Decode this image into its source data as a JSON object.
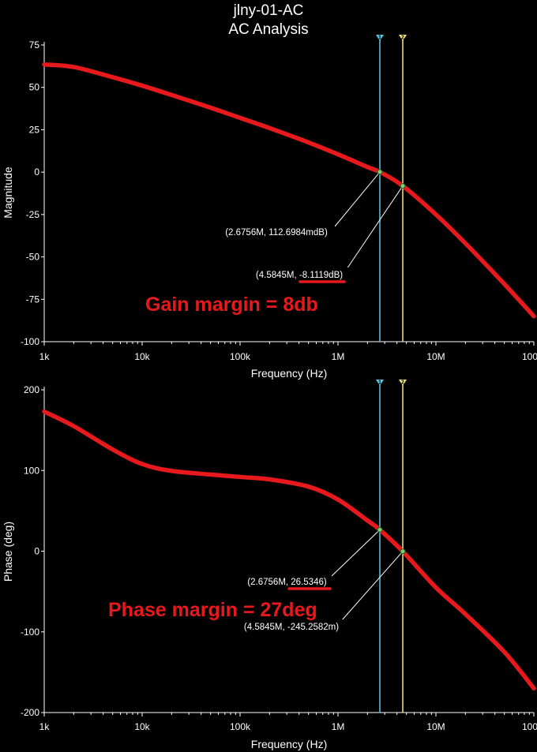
{
  "header": {
    "title": "jlny-01-AC",
    "subtitle": "AC Analysis"
  },
  "cursors": [
    {
      "id": "1",
      "freq": 2675600,
      "color": "#5bc8e6"
    },
    {
      "id": "2",
      "freq": 4584500,
      "color": "#f4e97a"
    }
  ],
  "chart_data": [
    {
      "type": "line",
      "name": "magnitude",
      "xlabel": "Frequency (Hz)",
      "ylabel": "Magnitude",
      "xscale": "log",
      "xlim": [
        1000,
        100000000
      ],
      "ylim": [
        -100,
        75
      ],
      "xticks": [
        1000,
        10000,
        100000,
        1000000,
        10000000,
        100000000
      ],
      "xtick_labels": [
        "1k",
        "10k",
        "100k",
        "1M",
        "10M",
        "100M"
      ],
      "yticks": [
        75,
        50,
        25,
        0,
        -25,
        -50,
        -75,
        -100
      ],
      "ytick_labels": [
        "75",
        "50",
        "25",
        "0",
        "-25",
        "-50",
        "-75",
        "-100"
      ],
      "grid": false,
      "line_color": "#e8191c",
      "series": [
        {
          "x": [
            1000,
            2000,
            5000,
            10000,
            20000,
            50000,
            100000,
            200000,
            500000,
            1000000,
            2000000,
            2675600,
            4584500,
            10000000,
            20000000,
            50000000,
            100000000
          ],
          "y": [
            63.5,
            62,
            56,
            51,
            45.5,
            38,
            32,
            26,
            17.5,
            10.5,
            3,
            0.1127,
            -8.1119,
            -25,
            -42,
            -66,
            -85
          ]
        }
      ],
      "annotations": [
        {
          "label": "(2.6756M, 112.6984mdB)",
          "x": 2675600,
          "y": 0.1127
        },
        {
          "label": "(4.5845M, -8.1119dB)",
          "x": 4584500,
          "y": -8.1119
        }
      ],
      "note": "Gain margin = 8db"
    },
    {
      "type": "line",
      "name": "phase",
      "xlabel": "Frequency (Hz)",
      "ylabel": "Phase (deg)",
      "xscale": "log",
      "xlim": [
        1000,
        100000000
      ],
      "ylim": [
        -200,
        200
      ],
      "xticks": [
        1000,
        10000,
        100000,
        1000000,
        10000000,
        100000000
      ],
      "xtick_labels": [
        "1k",
        "10k",
        "100k",
        "1M",
        "10M",
        "100M"
      ],
      "yticks": [
        200,
        100,
        0,
        -100,
        -200
      ],
      "ytick_labels": [
        "200",
        "100",
        "0",
        "-100",
        "-200"
      ],
      "grid": false,
      "line_color": "#e8191c",
      "series": [
        {
          "x": [
            1000,
            2000,
            5000,
            10000,
            20000,
            50000,
            100000,
            200000,
            500000,
            1000000,
            2000000,
            2675600,
            4584500,
            10000000,
            20000000,
            50000000,
            100000000
          ],
          "y": [
            173,
            155,
            126,
            108,
            99.5,
            95,
            92,
            89,
            80,
            64,
            38,
            26.5346,
            -0.2453,
            -45,
            -78,
            -125,
            -170
          ]
        }
      ],
      "annotations": [
        {
          "label": "(2.6756M, 26.5346)",
          "x": 2675600,
          "y": 26.5346
        },
        {
          "label": "(4.5845M, -245.2582m)",
          "x": 4584500,
          "y": -0.2453
        }
      ],
      "note": "Phase margin = 27deg"
    }
  ]
}
